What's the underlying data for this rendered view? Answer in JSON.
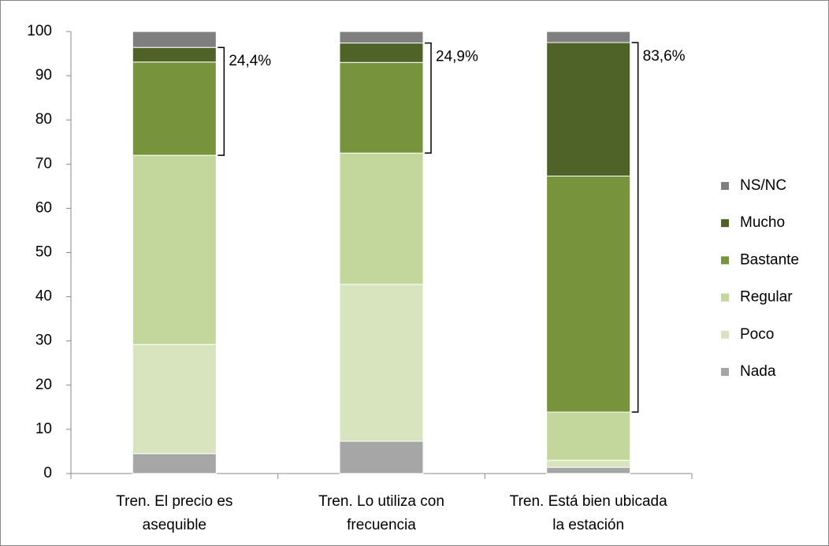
{
  "chart_data": {
    "type": "stacked_bar",
    "categories": [
      [
        "Tren. El precio es",
        "asequible"
      ],
      [
        "Tren. Lo utiliza con",
        "frecuencia"
      ],
      [
        "Tren. Está bien ubicada",
        "la estación"
      ]
    ],
    "series": [
      {
        "name": "Nada",
        "color": "#a6a6a6",
        "values": [
          4.5,
          7.3,
          1.4
        ]
      },
      {
        "name": "Poco",
        "color": "#d7e4bd",
        "values": [
          24.7,
          35.5,
          1.6
        ]
      },
      {
        "name": "Regular",
        "color": "#c3d69b",
        "values": [
          42.8,
          29.7,
          10.9
        ]
      },
      {
        "name": "Bastante",
        "color": "#77933c",
        "values": [
          21.1,
          20.5,
          53.4
        ]
      },
      {
        "name": "Mucho",
        "color": "#4f6228",
        "values": [
          3.3,
          4.4,
          30.2
        ]
      },
      {
        "name": "NS/NC",
        "color": "#7f7f7f",
        "values": [
          3.6,
          2.6,
          2.5
        ]
      }
    ],
    "annotations": {
      "values": [
        24.4,
        24.9,
        83.6
      ],
      "value_labels": [
        "24,4%",
        "24,9%",
        "83,6%"
      ]
    },
    "ylim": [
      0,
      100
    ],
    "yticks": [
      0,
      10,
      20,
      30,
      40,
      50,
      60,
      70,
      80,
      90,
      100
    ],
    "grid": false,
    "legend": "right"
  }
}
